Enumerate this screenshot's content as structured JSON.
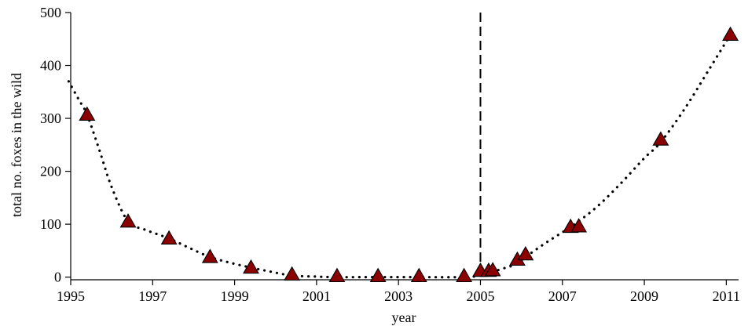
{
  "chart_data": {
    "type": "scatter",
    "xlabel": "year",
    "ylabel": "total no. foxes in the wild",
    "xlim": [
      1995,
      2011.3
    ],
    "ylim": [
      -5,
      500
    ],
    "x_ticks": [
      1995,
      1997,
      1999,
      2001,
      2003,
      2005,
      2007,
      2009,
      2011
    ],
    "x_tick_labels": [
      "1995",
      "1997",
      "1999",
      "2001",
      "2003",
      "2005",
      "2007",
      "2009",
      "2011"
    ],
    "y_ticks": [
      0,
      100,
      200,
      300,
      400,
      500
    ],
    "y_tick_labels": [
      "0",
      "100",
      "200",
      "300",
      "400",
      "500"
    ],
    "grid": false,
    "series": [
      {
        "style": "triangle markers",
        "color": "#8b0000",
        "x": [
          1995.4,
          1996.4,
          1997.4,
          1998.4,
          1999.4,
          2000.4,
          2001.5,
          2002.5,
          2003.5,
          2004.6,
          2005.0,
          2005.2,
          2005.3,
          2005.9,
          2006.1,
          2007.2,
          2007.4,
          2009.4,
          2011.1
        ],
        "y": [
          307,
          105,
          73,
          38,
          18,
          5,
          2,
          2,
          2,
          2,
          12,
          12,
          13,
          33,
          43,
          95,
          96,
          260,
          458
        ]
      },
      {
        "style": "dotted line",
        "color": "#000000",
        "x": [
          1994.95,
          1995.2,
          1995.4,
          1995.7,
          1996.0,
          1996.4,
          1996.8,
          1997.4,
          1997.9,
          1998.4,
          1998.9,
          1999.4,
          1999.9,
          2000.4,
          2001.0,
          2001.5,
          2002.5,
          2003.5,
          2004.6,
          2005.0,
          2005.2,
          2005.5,
          2005.9,
          2006.1,
          2006.6,
          2007.2,
          2007.8,
          2008.4,
          2009.0,
          2009.4,
          2010.0,
          2010.6,
          2011.1
        ],
        "y": [
          370,
          335,
          307,
          240,
          170,
          105,
          90,
          73,
          55,
          38,
          27,
          18,
          10,
          3,
          1,
          0,
          0,
          0,
          0,
          3,
          7,
          15,
          25,
          38,
          65,
          95,
          130,
          175,
          225,
          255,
          320,
          395,
          458
        ]
      }
    ],
    "reference_line": {
      "x": 2005.0,
      "style": "dashed"
    }
  }
}
